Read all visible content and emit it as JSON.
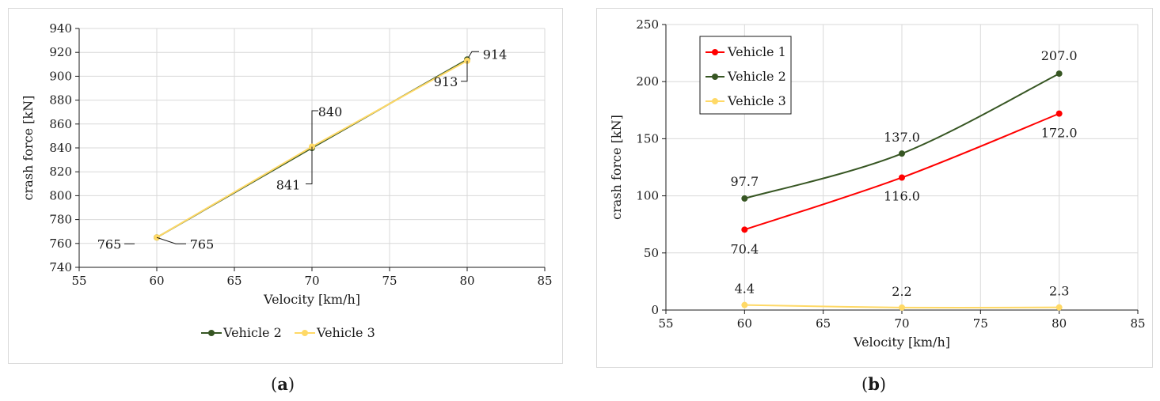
{
  "chart_data": [
    {
      "type": "line",
      "panel_label": "a",
      "xlabel": "Velocity [km/h]",
      "ylabel": "crash force [kN]",
      "xlim": [
        55,
        85
      ],
      "ylim": [
        740,
        940
      ],
      "xticks": [
        55,
        60,
        65,
        70,
        75,
        80,
        85
      ],
      "yticks": [
        740,
        760,
        780,
        800,
        820,
        840,
        860,
        880,
        900,
        920,
        940
      ],
      "grid": true,
      "legend_position": "bottom",
      "series": [
        {
          "name": "Vehicle 2",
          "color": "#375623",
          "x": [
            60,
            70,
            80
          ],
          "y": [
            765,
            840,
            914
          ],
          "labels": [
            "765",
            "840",
            "914"
          ]
        },
        {
          "name": "Vehicle 3",
          "color": "#FFD966",
          "x": [
            60,
            70,
            80
          ],
          "y": [
            765,
            841,
            913
          ],
          "labels": [
            "765",
            "841",
            "913"
          ]
        }
      ]
    },
    {
      "type": "line",
      "panel_label": "b",
      "xlabel": "Velocity [km/h]",
      "ylabel": "crash force [kN]",
      "xlim": [
        55,
        85
      ],
      "ylim": [
        0,
        250
      ],
      "xticks": [
        55,
        60,
        65,
        70,
        75,
        80,
        85
      ],
      "yticks": [
        0,
        50,
        100,
        150,
        200,
        250
      ],
      "grid": true,
      "legend_position": "top-left",
      "series": [
        {
          "name": "Vehicle 1",
          "color": "#FF0000",
          "x": [
            60,
            70,
            80
          ],
          "y": [
            70.4,
            116.0,
            172.0
          ],
          "labels": [
            "70.4",
            "116.0",
            "172.0"
          ]
        },
        {
          "name": "Vehicle 2",
          "color": "#375623",
          "x": [
            60,
            70,
            80
          ],
          "y": [
            97.7,
            137.0,
            207.0
          ],
          "labels": [
            "97.7",
            "137.0",
            "207.0"
          ]
        },
        {
          "name": "Vehicle 3",
          "color": "#FFD966",
          "x": [
            60,
            70,
            80
          ],
          "y": [
            4.4,
            2.2,
            2.3
          ],
          "labels": [
            "4.4",
            "2.2",
            "2.3"
          ]
        }
      ]
    }
  ]
}
